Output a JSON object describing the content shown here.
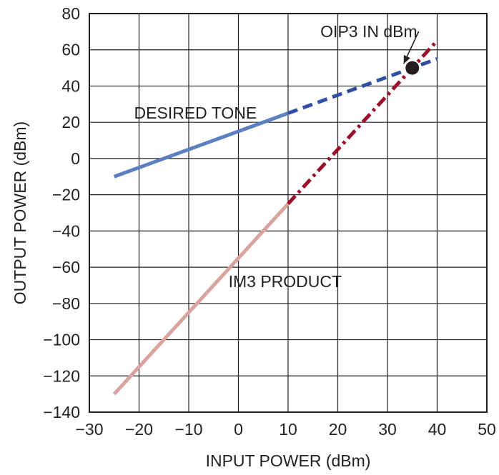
{
  "chart_data": {
    "type": "line",
    "xlabel": "INPUT POWER (dBm)",
    "ylabel": "OUTPUT POWER (dBm)",
    "xlim": [
      -30,
      50
    ],
    "ylim": [
      -140,
      80
    ],
    "x_ticks": [
      -30,
      -20,
      -10,
      0,
      10,
      20,
      30,
      40,
      50
    ],
    "y_ticks": [
      80,
      60,
      40,
      20,
      0,
      -20,
      -40,
      -60,
      -80,
      -100,
      -120,
      -140
    ],
    "x_tick_labels": [
      "−30",
      "−20",
      "−10",
      "0",
      "10",
      "20",
      "30",
      "40",
      "50"
    ],
    "y_tick_labels": [
      "80",
      "60",
      "40",
      "20",
      "0",
      "−20",
      "−40",
      "−60",
      "−80",
      "−100",
      "−120",
      "−140"
    ],
    "grid": true,
    "series": [
      {
        "name": "DESIRED TONE",
        "segments": [
          {
            "style": "solid",
            "color": "#5b7fc0",
            "x": [
              -25,
              10
            ],
            "y": [
              -10,
              25
            ]
          },
          {
            "style": "dashed",
            "color": "#2e4fa3",
            "x": [
              10,
              40
            ],
            "y": [
              25,
              55
            ]
          }
        ]
      },
      {
        "name": "IM3 PRODUCT",
        "segments": [
          {
            "style": "solid",
            "color": "#d9a39f",
            "x": [
              -25,
              10
            ],
            "y": [
              -130,
              -25
            ]
          },
          {
            "style": "dashdot",
            "color": "#9a0f2a",
            "x": [
              10,
              40
            ],
            "y": [
              -25,
              65
            ]
          }
        ]
      }
    ],
    "annotations": [
      {
        "id": "desired",
        "text": "DESIRED TONE",
        "x": -21,
        "y": 22
      },
      {
        "id": "im3",
        "text": "IM3 PRODUCT",
        "x": -2,
        "y": -71
      },
      {
        "id": "oip3",
        "text": "OIP3 IN dBm",
        "x": 16.5,
        "y": 67,
        "point": [
          35,
          50
        ]
      }
    ]
  }
}
